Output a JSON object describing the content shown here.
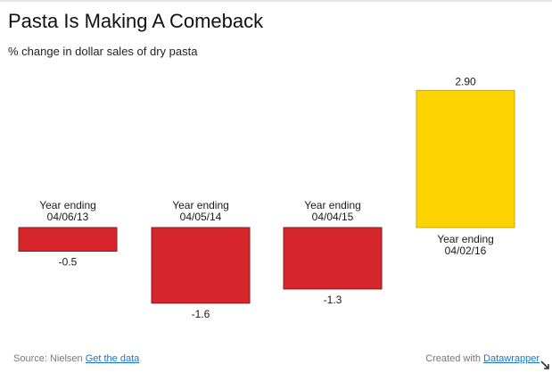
{
  "chart_data": {
    "type": "bar",
    "title": "Pasta Is Making A Comeback",
    "subtitle": "% change in dollar sales of dry pasta",
    "categories": [
      [
        "Year ending",
        "04/06/13"
      ],
      [
        "Year ending",
        "04/05/14"
      ],
      [
        "Year ending",
        "04/04/15"
      ],
      [
        "Year ending",
        "04/02/16"
      ]
    ],
    "values": [
      -0.5,
      -1.6,
      -1.3,
      2.9
    ],
    "value_labels": [
      "-0.5",
      "-1.6",
      "-1.3",
      "2.90"
    ],
    "colors": [
      "#d7262b",
      "#d7262b",
      "#d7262b",
      "#fdd300"
    ],
    "bar_border": "#8b1a1a",
    "xlabel": "",
    "ylabel": "",
    "ylim": [
      -1.6,
      2.9
    ],
    "grid": false,
    "legend": "none"
  },
  "footer": {
    "source_prefix": "Source: Nielsen",
    "get_data_link": "Get the data",
    "created_prefix": "Created with",
    "datawrapper_link": "Datawrapper"
  },
  "icons": {
    "resize": "resize-corner-icon"
  }
}
